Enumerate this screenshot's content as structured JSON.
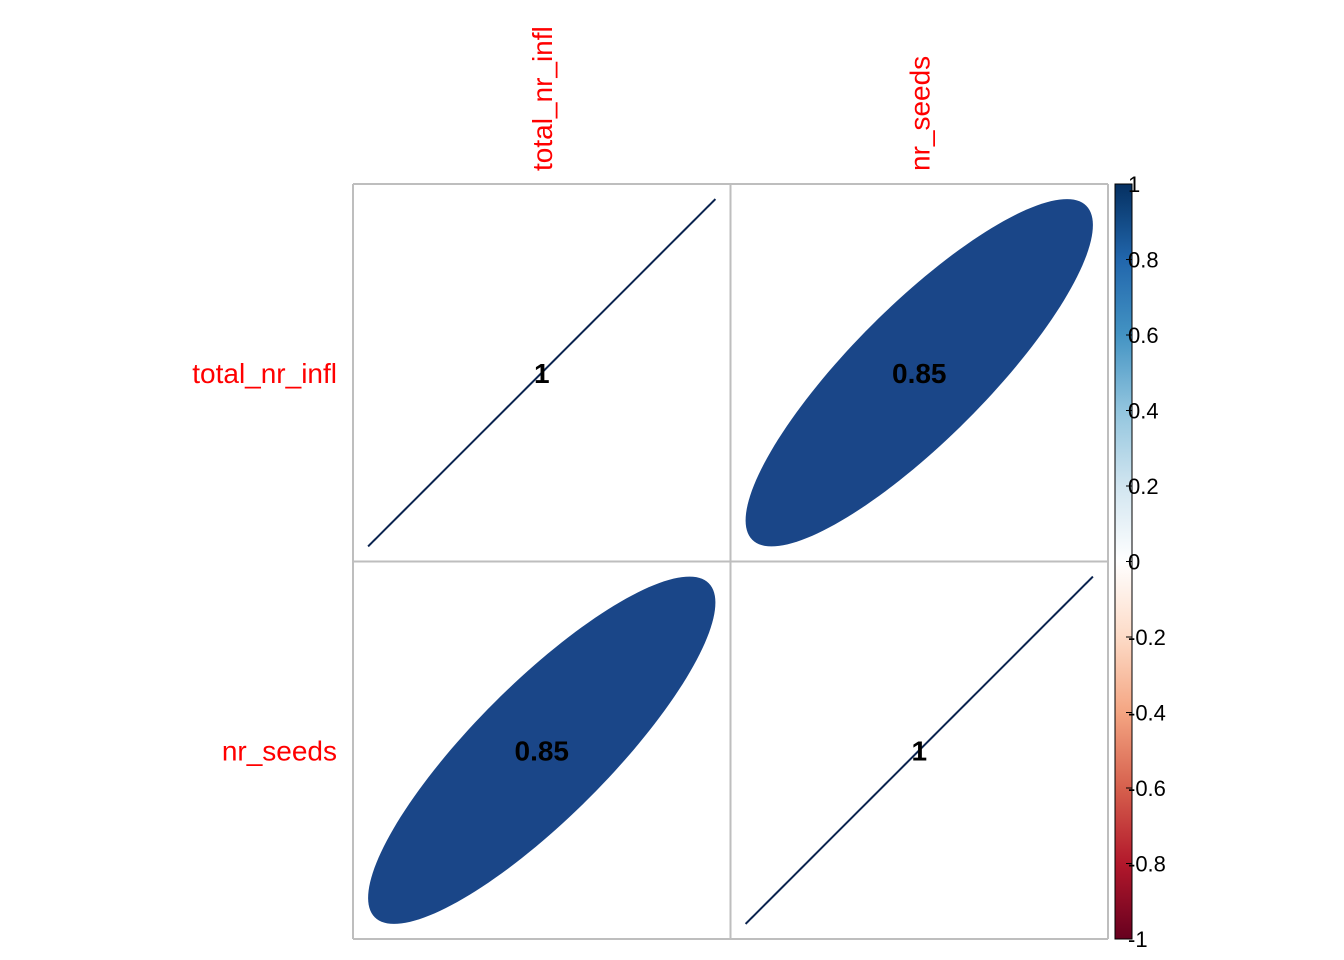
{
  "chart_data": {
    "type": "heatmap",
    "method": "ellipse",
    "variables": [
      "total_nr_infl",
      "nr_seeds"
    ],
    "matrix": [
      [
        1,
        0.85
      ],
      [
        0.85,
        1
      ]
    ],
    "cell_labels": [
      [
        "1",
        "0.85"
      ],
      [
        "0.85",
        "1"
      ]
    ],
    "colorbar": {
      "range": [
        -1,
        1
      ],
      "ticks": [
        -1,
        -0.8,
        -0.6,
        -0.4,
        -0.2,
        0,
        0.2,
        0.4,
        0.6,
        0.8,
        1
      ],
      "tick_labels": [
        "-1",
        "-0.8",
        "-0.6",
        "-0.4",
        "-0.2",
        "0",
        "0.2",
        "0.4",
        "0.6",
        "0.8",
        "1"
      ],
      "palette": [
        "#67001F",
        "#B2182B",
        "#D6604D",
        "#F4A582",
        "#FDDBC7",
        "#FFFFFF",
        "#D1E5F0",
        "#92C5DE",
        "#4393C3",
        "#2166AC",
        "#053061"
      ],
      "placement": "right"
    },
    "grid": true
  },
  "colors": {
    "label": "#FF0000",
    "grid": "#BEBEBE",
    "ellipse_085": "#1A4688",
    "line_1": "#0B2450"
  }
}
